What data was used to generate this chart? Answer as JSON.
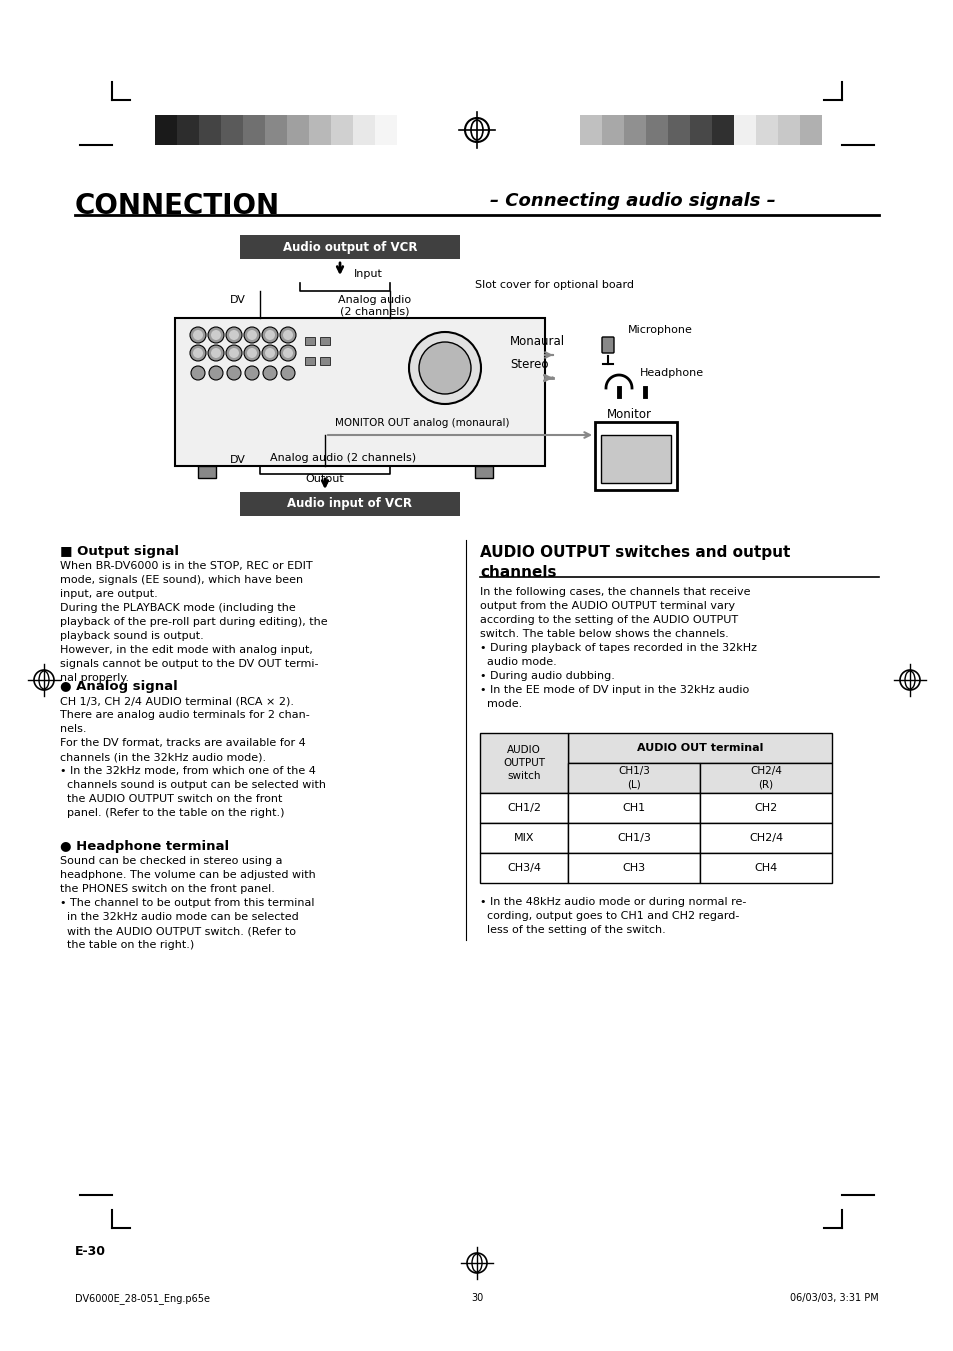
{
  "page_title_left": "CONNECTION",
  "page_title_right": "– Connecting audio signals –",
  "bg_color": "#ffffff",
  "header_bar_left_colors": [
    "#1a1a1a",
    "#2d2d2d",
    "#444444",
    "#5a5a5a",
    "#707070",
    "#888888",
    "#a0a0a0",
    "#b8b8b8",
    "#d0d0d0",
    "#e8e8e8",
    "#f5f5f5"
  ],
  "header_bar_right_colors": [
    "#c0c0c0",
    "#a8a8a8",
    "#909090",
    "#787878",
    "#606060",
    "#484848",
    "#303030",
    "#f0f0f0",
    "#d8d8d8",
    "#c8c8c8",
    "#b0b0b0"
  ],
  "section1_title": "■ Output signal",
  "section1_text": "When BR-DV6000 is in the STOP, REC or EDIT\nmode, signals (EE sound), which have been\ninput, are output.\nDuring the PLAYBACK mode (including the\nplayback of the pre-roll part during editing), the\nplayback sound is output.\nHowever, in the edit mode with analog input,\nsignals cannot be output to the DV OUT termi-\nnal properly.",
  "section2_title": "● Analog signal",
  "section2_text": "CH 1/3, CH 2/4 AUDIO terminal (RCA × 2).\nThere are analog audio terminals for 2 chan-\nnels.\nFor the DV format, tracks are available for 4\nchannels (in the 32kHz audio mode).\n• In the 32kHz mode, from which one of the 4\n  channels sound is output can be selected with\n  the AUDIO OUTPUT switch on the front\n  panel. (Refer to the table on the right.)",
  "section3_title": "● Headphone terminal",
  "section3_text": "Sound can be checked in stereo using a\nheadphone. The volume can be adjusted with\nthe PHONES switch on the front panel.\n• The channel to be output from this terminal\n  in the 32kHz audio mode can be selected\n  with the AUDIO OUTPUT switch. (Refer to\n  the table on the right.)",
  "right_section_title": "AUDIO OUTPUT switches and output\nchannels",
  "right_section_intro": "In the following cases, the channels that receive\noutput from the AUDIO OUTPUT terminal vary\naccording to the setting of the AUDIO OUTPUT\nswitch. The table below shows the channels.\n• During playback of tapes recorded in the 32kHz\n  audio mode.\n• During audio dubbing.\n• In the EE mode of DV input in the 32kHz audio\n  mode.",
  "table_header_col1": "AUDIO\nOUTPUT\nswitch",
  "table_header_col2": "AUDIO OUT terminal",
  "table_subheader_col2": "CH1/3\n(L)",
  "table_subheader_col3": "CH2/4\n(R)",
  "table_rows": [
    [
      "CH1/2",
      "CH1",
      "CH2"
    ],
    [
      "MIX",
      "CH1/3",
      "CH2/4"
    ],
    [
      "CH3/4",
      "CH3",
      "CH4"
    ]
  ],
  "right_note": "• In the 48kHz audio mode or during normal re-\n  cording, output goes to CH1 and CH2 regard-\n  less of the setting of the switch.",
  "page_label": "E-30",
  "footer_left": "DV6000E_28-051_Eng.p65e",
  "footer_center": "30",
  "footer_right": "06/03/03, 3:31 PM",
  "diagram_vcr_output_label": "Audio output of VCR",
  "diagram_vcr_input_label": "Audio input of VCR",
  "diagram_input_label": "Input",
  "diagram_dv_label1": "DV",
  "diagram_analog_input_label": "Analog audio\n(2 channels)",
  "diagram_slot_label": "Slot cover for optional board",
  "diagram_monaural_label": "Monaural",
  "diagram_stereo_label": "Stereo",
  "diagram_microphone_label": "Microphone",
  "diagram_headphone_label": "Headphone",
  "diagram_monitor_label": "Monitor",
  "diagram_monitor_out_label": "MONITOR OUT analog (monaural)",
  "diagram_dv_label2": "DV",
  "diagram_analog_output_label": "Analog audio (2 channels)",
  "diagram_output_label": "Output"
}
